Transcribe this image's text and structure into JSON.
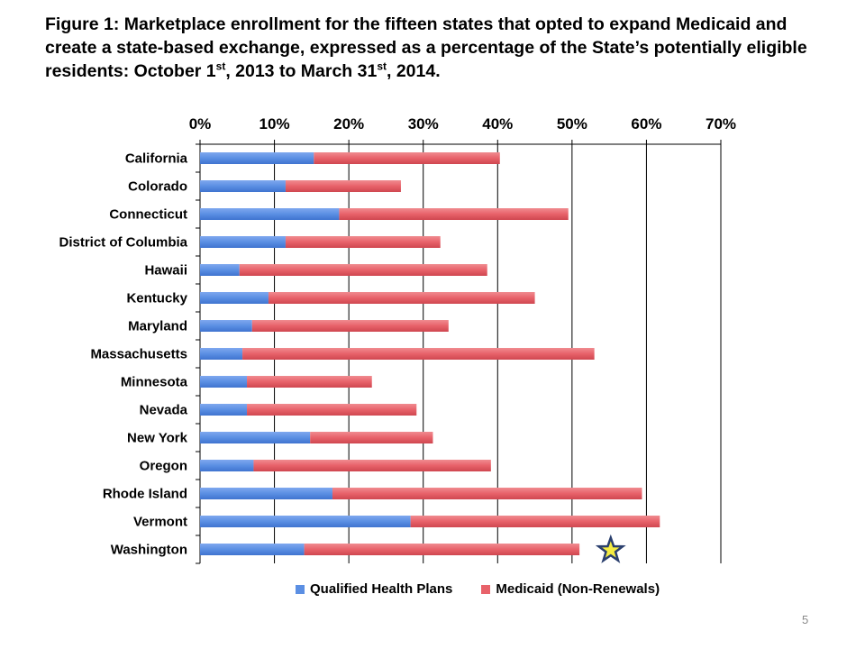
{
  "title": {
    "part1": "Figure 1: Marketplace enrollment for the fifteen states that opted to expand Medicaid and create a state-based exchange, expressed as a percentage of the State’s potentially eligible residents:  October 1",
    "sup1": "st",
    "part2": ", 2013 to March 31",
    "sup2": "st",
    "part3": ", 2014."
  },
  "page_number": "5",
  "colors": {
    "qhp": "#5b8fe3",
    "medicaid": "#e8626a",
    "grid": "#000000",
    "star_fill": "#f5ec42",
    "star_stroke": "#2a3f6e"
  },
  "chart_data": {
    "type": "bar",
    "orientation": "horizontal",
    "stacked": true,
    "x_axis_position": "top",
    "xlim": [
      0,
      70
    ],
    "x_ticks": [
      "0%",
      "10%",
      "20%",
      "30%",
      "40%",
      "50%",
      "60%",
      "70%"
    ],
    "grid": true,
    "legend_position": "bottom",
    "categories": [
      "California",
      "Colorado",
      "Connecticut",
      "District of Columbia",
      "Hawaii",
      "Kentucky",
      "Maryland",
      "Massachusetts",
      "Minnesota",
      "Nevada",
      "New York",
      "Oregon",
      "Rhode Island",
      "Vermont",
      "Washington"
    ],
    "series": [
      {
        "name": "Qualified Health Plans",
        "values": [
          15.3,
          11.5,
          18.7,
          11.5,
          5.3,
          9.2,
          7.0,
          5.7,
          6.3,
          6.3,
          14.8,
          7.2,
          17.8,
          28.3,
          14.0
        ]
      },
      {
        "name": "Medicaid (Non-Renewals)",
        "values": [
          25.0,
          15.5,
          30.8,
          20.8,
          33.3,
          35.8,
          26.4,
          47.3,
          16.8,
          22.8,
          16.5,
          31.9,
          41.6,
          33.5,
          37.0
        ]
      }
    ],
    "annotations": [
      {
        "type": "star",
        "category": "Washington",
        "x": 55.2
      }
    ]
  }
}
